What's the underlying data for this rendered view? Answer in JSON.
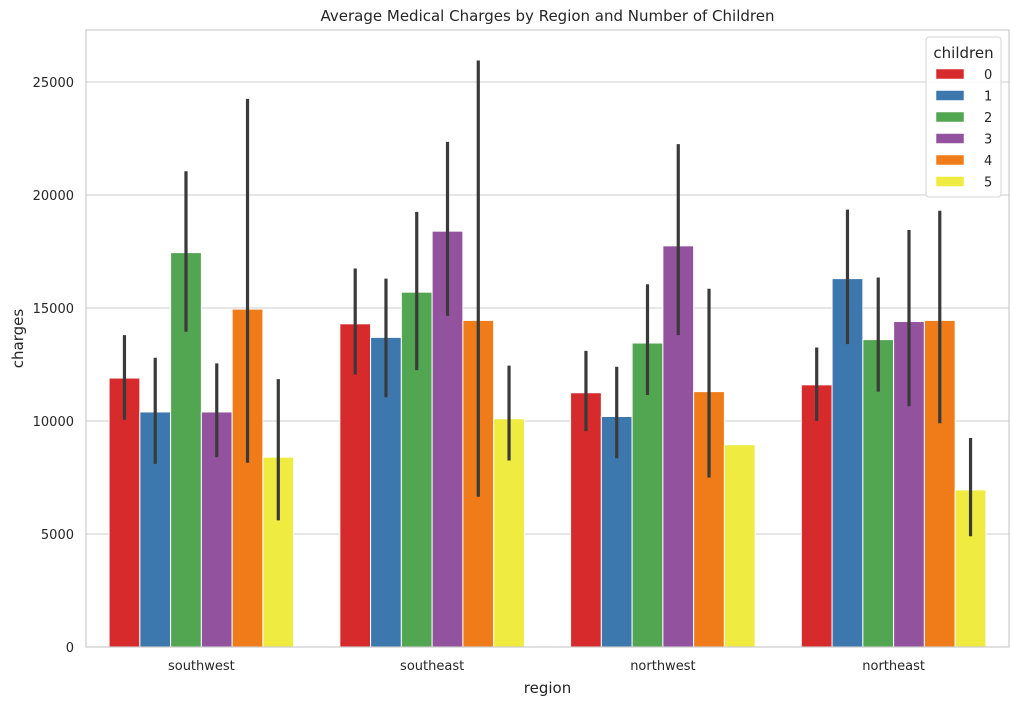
{
  "chart_data": {
    "type": "bar",
    "title": "Average Medical Charges by Region and Number of Children",
    "xlabel": "region",
    "ylabel": "charges",
    "categories": [
      "southwest",
      "southeast",
      "northwest",
      "northeast"
    ],
    "ylim": [
      0,
      27300
    ],
    "yticks": [
      0,
      5000,
      10000,
      15000,
      20000,
      25000
    ],
    "yticklabels": [
      "0",
      "5000",
      "10000",
      "15000",
      "20000",
      "25000"
    ],
    "grid": "horizontal",
    "legend": {
      "title": "children",
      "position": "top-right"
    },
    "series": [
      {
        "name": "0",
        "color": "#d62a2c",
        "values": [
          11900,
          14300,
          11250,
          11600
        ],
        "ci": [
          [
            10050,
            13800
          ],
          [
            12050,
            16750
          ],
          [
            9550,
            13100
          ],
          [
            10000,
            13250
          ]
        ]
      },
      {
        "name": "1",
        "color": "#3c78ae",
        "values": [
          10400,
          13700,
          10200,
          16300
        ],
        "ci": [
          [
            8100,
            12800
          ],
          [
            11050,
            16300
          ],
          [
            8350,
            12400
          ],
          [
            13400,
            19350
          ]
        ]
      },
      {
        "name": "2",
        "color": "#52a551",
        "values": [
          17450,
          15700,
          13450,
          13600
        ],
        "ci": [
          [
            13950,
            21050
          ],
          [
            12250,
            19250
          ],
          [
            11150,
            16050
          ],
          [
            11300,
            16350
          ]
        ]
      },
      {
        "name": "3",
        "color": "#92529e",
        "values": [
          10400,
          18400,
          17750,
          14400
        ],
        "ci": [
          [
            8400,
            12550
          ],
          [
            14650,
            22350
          ],
          [
            13800,
            22250
          ],
          [
            10650,
            18450
          ]
        ]
      },
      {
        "name": "4",
        "color": "#ef7c19",
        "values": [
          14950,
          14450,
          11300,
          14450
        ],
        "ci": [
          [
            8150,
            24250
          ],
          [
            6650,
            25950
          ],
          [
            7500,
            15850
          ],
          [
            9900,
            19300
          ]
        ]
      },
      {
        "name": "5",
        "color": "#f0eb40",
        "values": [
          8400,
          10100,
          8950,
          6950
        ],
        "ci": [
          [
            5600,
            11850
          ],
          [
            8250,
            12450
          ],
          null,
          [
            4900,
            9250
          ]
        ]
      }
    ]
  }
}
